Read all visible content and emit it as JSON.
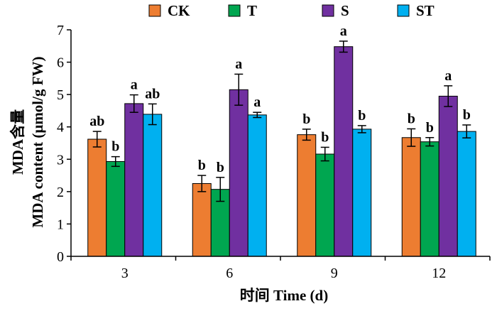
{
  "chart_data": {
    "type": "bar",
    "categories": [
      "3",
      "6",
      "9",
      "12"
    ],
    "series": [
      {
        "name": "CK",
        "color": "#ED7D31",
        "values": [
          3.62,
          2.25,
          3.76,
          3.67
        ],
        "errors": [
          0.24,
          0.25,
          0.17,
          0.27
        ],
        "labels": [
          "ab",
          "b",
          "b",
          "b"
        ]
      },
      {
        "name": "T",
        "color": "#00A650",
        "values": [
          2.93,
          2.07,
          3.16,
          3.54
        ],
        "errors": [
          0.15,
          0.37,
          0.21,
          0.13
        ],
        "labels": [
          "b",
          "b",
          "b",
          "b"
        ]
      },
      {
        "name": "S",
        "color": "#7030A0",
        "values": [
          4.72,
          5.15,
          6.48,
          4.95
        ],
        "errors": [
          0.27,
          0.48,
          0.17,
          0.32
        ],
        "labels": [
          "a",
          "a",
          "a",
          "a"
        ]
      },
      {
        "name": "ST",
        "color": "#00B0F0",
        "values": [
          4.39,
          4.37,
          3.93,
          3.86
        ],
        "errors": [
          0.32,
          0.08,
          0.11,
          0.2
        ],
        "labels": [
          "ab",
          "a",
          "b",
          "b"
        ]
      }
    ],
    "ylabel_cn": "MDA含量",
    "ylabel_en": "MDA content (μmol/g FW)",
    "xlabel": "时间 Time (d)",
    "ylim": [
      0,
      7
    ],
    "yticks": [
      "0",
      "1",
      "2",
      "3",
      "4",
      "5",
      "6",
      "7"
    ],
    "legend_position": "top",
    "grid": false
  }
}
